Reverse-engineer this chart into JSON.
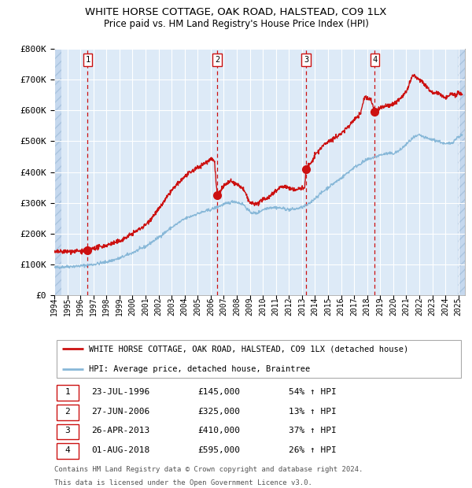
{
  "title": "WHITE HORSE COTTAGE, OAK ROAD, HALSTEAD, CO9 1LX",
  "subtitle": "Price paid vs. HM Land Registry's House Price Index (HPI)",
  "bg_color": "#ddeaf7",
  "hatch_color": "#c5d8ee",
  "grid_color": "#ffffff",
  "red_line_color": "#cc1111",
  "blue_line_color": "#88b8d8",
  "sale_marker_color": "#cc1111",
  "dashed_line_color": "#cc1111",
  "ylim": [
    0,
    800000
  ],
  "yticks": [
    0,
    100000,
    200000,
    300000,
    400000,
    500000,
    600000,
    700000,
    800000
  ],
  "ytick_labels": [
    "£0",
    "£100K",
    "£200K",
    "£300K",
    "£400K",
    "£500K",
    "£600K",
    "£700K",
    "£800K"
  ],
  "xlim_start": 1994.0,
  "xlim_end": 2025.5,
  "xticks": [
    1994,
    1995,
    1996,
    1997,
    1998,
    1999,
    2000,
    2001,
    2002,
    2003,
    2004,
    2005,
    2006,
    2007,
    2008,
    2009,
    2010,
    2011,
    2012,
    2013,
    2014,
    2015,
    2016,
    2017,
    2018,
    2019,
    2020,
    2021,
    2022,
    2023,
    2024,
    2025
  ],
  "sale_dates": [
    1996.56,
    2006.49,
    2013.32,
    2018.58
  ],
  "sale_prices": [
    145000,
    325000,
    410000,
    595000
  ],
  "sale_labels": [
    "1",
    "2",
    "3",
    "4"
  ],
  "footer_line1": "Contains HM Land Registry data © Crown copyright and database right 2024.",
  "footer_line2": "This data is licensed under the Open Government Licence v3.0.",
  "legend_line1": "WHITE HORSE COTTAGE, OAK ROAD, HALSTEAD, CO9 1LX (detached house)",
  "legend_line2": "HPI: Average price, detached house, Braintree",
  "table_rows": [
    [
      "1",
      "23-JUL-1996",
      "£145,000",
      "54% ↑ HPI"
    ],
    [
      "2",
      "27-JUN-2006",
      "£325,000",
      "13% ↑ HPI"
    ],
    [
      "3",
      "26-APR-2013",
      "£410,000",
      "37% ↑ HPI"
    ],
    [
      "4",
      "01-AUG-2018",
      "£595,000",
      "26% ↑ HPI"
    ]
  ]
}
